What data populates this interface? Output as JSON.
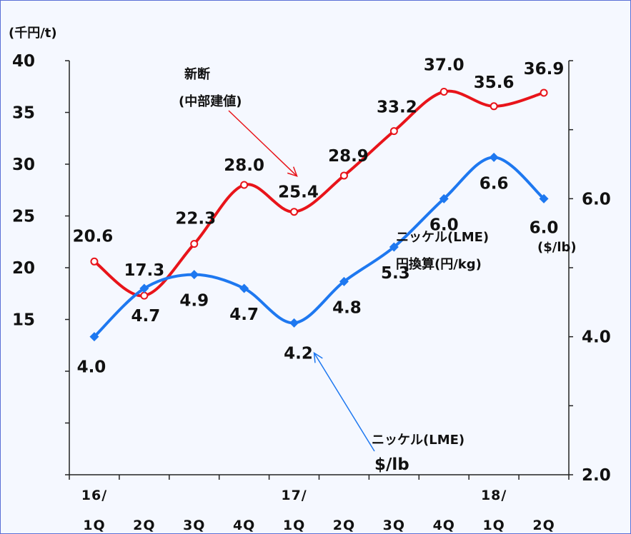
{
  "chart_data": {
    "type": "line",
    "left_axis": {
      "unit_label": "(千円/t)",
      "ticks": [
        "40",
        "35",
        "30",
        "25",
        "20",
        "15"
      ],
      "ylim": [
        0,
        40
      ]
    },
    "right_axis": {
      "unit_label": "($/lb)",
      "ticks": [
        "6.0",
        "4.0",
        "2.0"
      ],
      "ylim": [
        2.0,
        8.0
      ]
    },
    "x_labels": [
      {
        "top": "16/",
        "bottom": "1Q"
      },
      {
        "top": "",
        "bottom": "2Q"
      },
      {
        "top": "",
        "bottom": "3Q"
      },
      {
        "top": "",
        "bottom": "4Q"
      },
      {
        "top": "17/",
        "bottom": "1Q"
      },
      {
        "top": "",
        "bottom": "2Q"
      },
      {
        "top": "",
        "bottom": "3Q"
      },
      {
        "top": "",
        "bottom": "4Q"
      },
      {
        "top": "18/",
        "bottom": "1Q"
      },
      {
        "top": "",
        "bottom": "2Q"
      }
    ],
    "series": [
      {
        "name": "新断(中部建値)",
        "axis": "left",
        "color": "#E8141A",
        "marker": "circle",
        "values": [
          20.6,
          17.3,
          22.3,
          28.0,
          25.4,
          28.9,
          33.2,
          37.0,
          35.6,
          36.9
        ],
        "labels": [
          "20.6",
          "17.3",
          "22.3",
          "28.0",
          "25.4",
          "28.9",
          "33.2",
          "37.0",
          "35.6",
          "36.9"
        ]
      },
      {
        "name": "ニッケル(LME) $/lb",
        "axis": "right",
        "color": "#1E78F0",
        "marker": "diamond",
        "values": [
          4.0,
          4.7,
          4.9,
          4.7,
          4.2,
          4.8,
          5.3,
          6.0,
          6.6,
          6.0
        ],
        "labels": [
          "4.0",
          "4.7",
          "4.9",
          "4.7",
          "4.2",
          "4.8",
          "5.3",
          "6.0",
          "6.6",
          "6.0"
        ]
      }
    ],
    "annotations": {
      "shindan_line1": "新断",
      "shindan_line2": "(中部建値)",
      "nickel_yen_line1": "ニッケル(LME)",
      "nickel_yen_line2": "円換算(円/kg)",
      "nickel_usd_line1": "ニッケル(LME)",
      "nickel_usd_line2": "$/lb"
    }
  }
}
